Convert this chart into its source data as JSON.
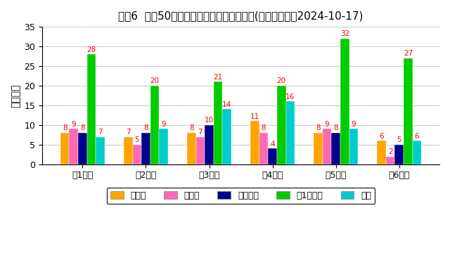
{
  "title": "ロト6  直近50回の数字パターンの出現回数(最終抽選日：2024-10-17)",
  "ylabel": "出現回数",
  "categories": [
    "第1数字",
    "第2数字",
    "第3数字",
    "第4数字",
    "第5数字",
    "第6数字"
  ],
  "series": {
    "前数字": [
      8,
      7,
      8,
      11,
      8,
      6
    ],
    "後数字": [
      9,
      5,
      7,
      8,
      9,
      2
    ],
    "継続数字": [
      8,
      8,
      10,
      4,
      8,
      5
    ],
    "下1桁数字": [
      28,
      20,
      21,
      20,
      32,
      27
    ],
    "連番": [
      7,
      9,
      14,
      16,
      9,
      6
    ]
  },
  "colors": {
    "前数字": "#FFA500",
    "後数字": "#FF69B4",
    "継続数字": "#00008B",
    "下1桁数字": "#00CC00",
    "連番": "#00CCCC"
  },
  "ylim": [
    0,
    35
  ],
  "yticks": [
    0,
    5,
    10,
    15,
    20,
    25,
    30,
    35
  ],
  "bar_width": 0.14,
  "label_color_high": "#FF0000",
  "label_color_low": "#000000",
  "background_color": "#FFFFFF",
  "grid_color": "#CCCCCC",
  "title_fontsize": 11,
  "axis_fontsize": 10,
  "tick_fontsize": 9,
  "legend_fontsize": 9,
  "label_fontsize": 7.5
}
